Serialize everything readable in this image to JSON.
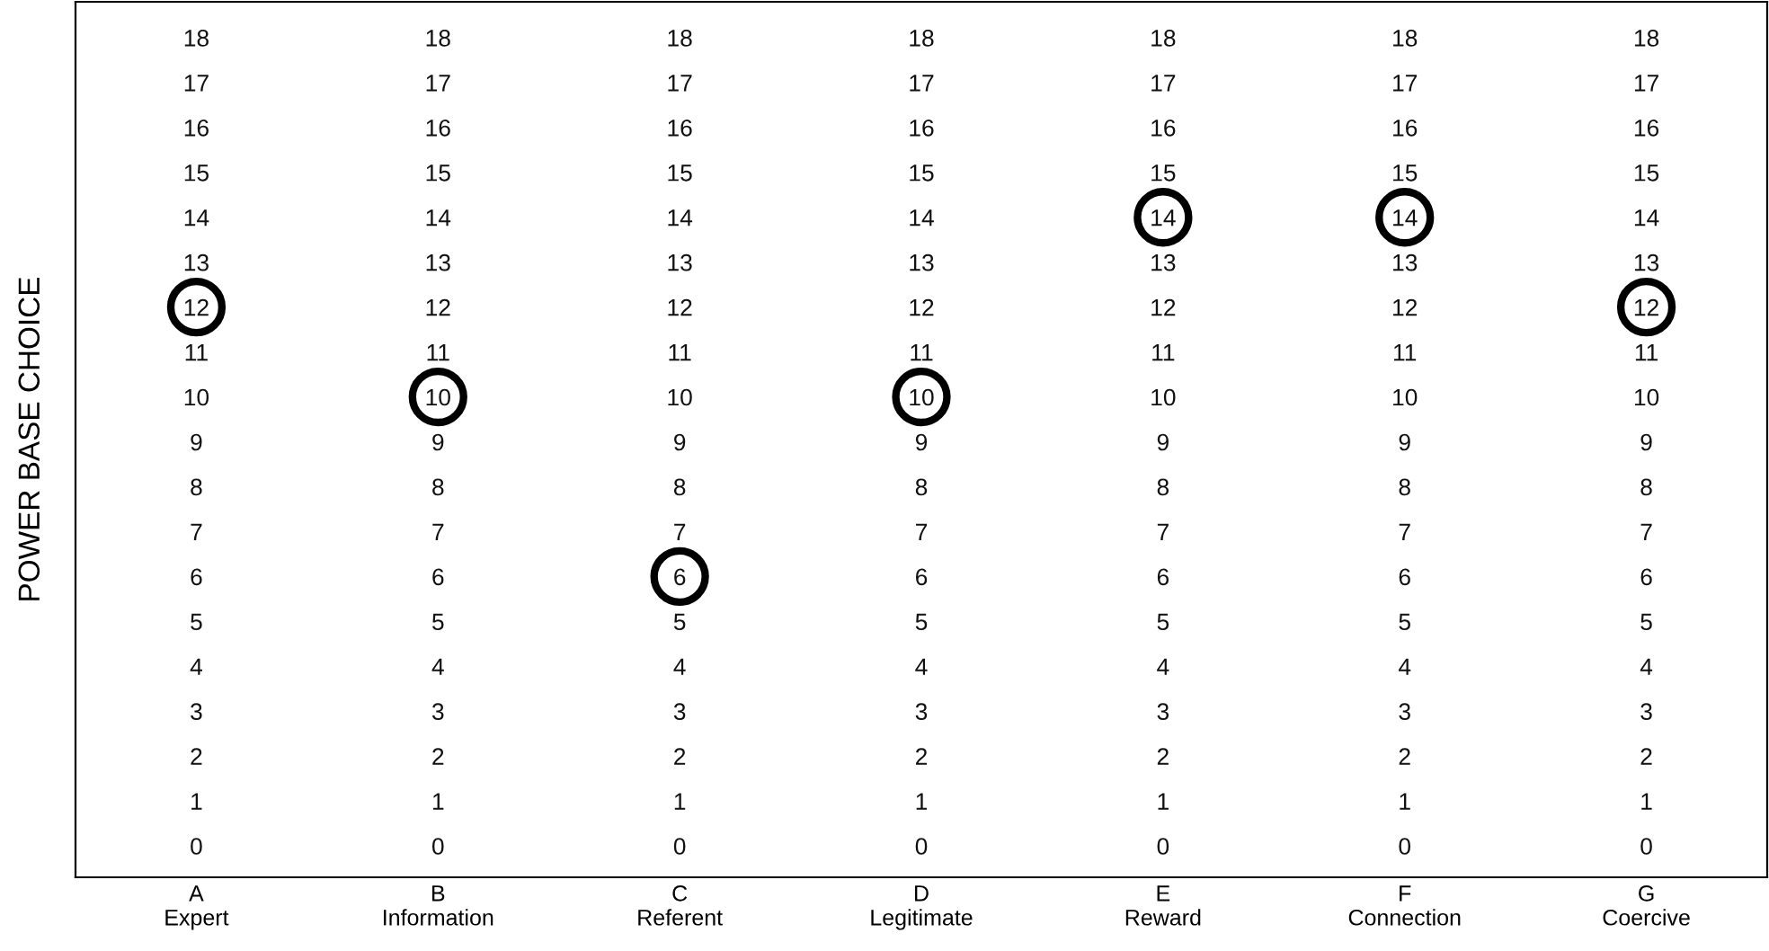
{
  "chart_data": [
    {
      "type": "scatter",
      "ylabel": "POWER BASE CHOICE",
      "categories": [
        "A\nExpert"
      ],
      "values": [
        12
      ],
      "color": "#000000",
      "marker": "circle",
      "ylim": [
        -0.7,
        18.8
      ],
      "yticks": [
        0,
        1,
        2,
        3,
        4,
        5,
        6,
        7,
        8,
        9,
        10,
        11,
        12,
        13,
        14,
        15,
        16,
        17,
        18
      ],
      "grid": false
    },
    {
      "type": "scatter",
      "categories": [
        "B\nInformation"
      ],
      "values": [
        10
      ],
      "color": "#000000",
      "marker": "circle",
      "ylim": [
        -0.7,
        18.8
      ],
      "yticks": [
        0,
        1,
        2,
        3,
        4,
        5,
        6,
        7,
        8,
        9,
        10,
        11,
        12,
        13,
        14,
        15,
        16,
        17,
        18
      ],
      "grid": false
    },
    {
      "type": "scatter",
      "categories": [
        "C\nReferent"
      ],
      "values": [
        6
      ],
      "color": "#000000",
      "marker": "circle",
      "ylim": [
        -0.7,
        18.8
      ],
      "yticks": [
        0,
        1,
        2,
        3,
        4,
        5,
        6,
        7,
        8,
        9,
        10,
        11,
        12,
        13,
        14,
        15,
        16,
        17,
        18
      ],
      "grid": false
    },
    {
      "type": "scatter",
      "categories": [
        "D\nLegitimate"
      ],
      "values": [
        10
      ],
      "color": "#000000",
      "marker": "circle",
      "ylim": [
        -0.7,
        18.8
      ],
      "yticks": [
        0,
        1,
        2,
        3,
        4,
        5,
        6,
        7,
        8,
        9,
        10,
        11,
        12,
        13,
        14,
        15,
        16,
        17,
        18
      ],
      "grid": false
    },
    {
      "type": "scatter",
      "categories": [
        "E\nReward"
      ],
      "values": [
        14
      ],
      "color": "#000000",
      "marker": "circle",
      "ylim": [
        -0.7,
        18.8
      ],
      "yticks": [
        0,
        1,
        2,
        3,
        4,
        5,
        6,
        7,
        8,
        9,
        10,
        11,
        12,
        13,
        14,
        15,
        16,
        17,
        18
      ],
      "grid": false
    },
    {
      "type": "scatter",
      "categories": [
        "F\nConnection"
      ],
      "values": [
        14
      ],
      "color": "#000000",
      "marker": "circle",
      "ylim": [
        -0.7,
        18.8
      ],
      "yticks": [
        0,
        1,
        2,
        3,
        4,
        5,
        6,
        7,
        8,
        9,
        10,
        11,
        12,
        13,
        14,
        15,
        16,
        17,
        18
      ],
      "grid": false
    },
    {
      "type": "scatter",
      "categories": [
        "G\nCoercive"
      ],
      "values": [
        12
      ],
      "color": "#000000",
      "marker": "circle",
      "ylim": [
        -0.7,
        18.8
      ],
      "yticks": [
        0,
        1,
        2,
        3,
        4,
        5,
        6,
        7,
        8,
        9,
        10,
        11,
        12,
        13,
        14,
        15,
        16,
        17,
        18
      ],
      "grid": false
    }
  ]
}
